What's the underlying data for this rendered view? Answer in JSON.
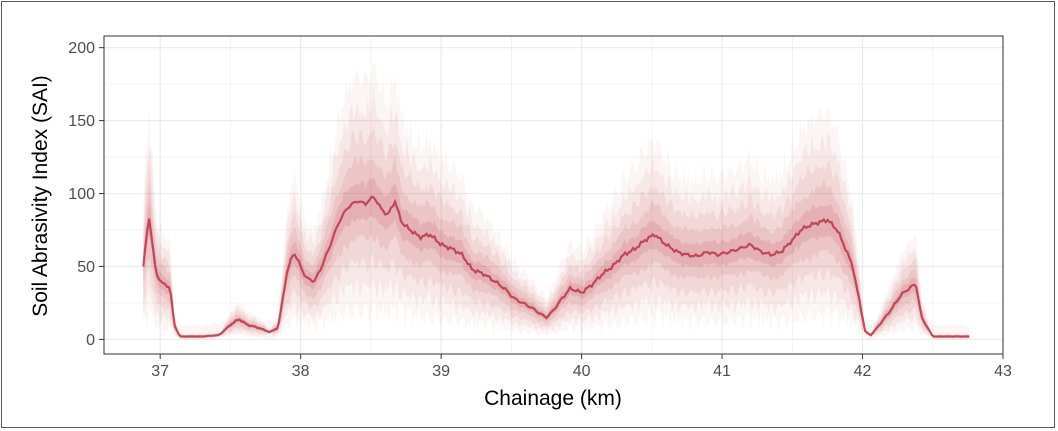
{
  "chart_data": {
    "type": "area",
    "chart_kind": "fan chart (percentile bands)",
    "title": "",
    "xlabel": "Chainage (km)",
    "ylabel": "Soil Abrasivity Index (SAI)",
    "xlim": [
      36.6,
      43.0
    ],
    "ylim": [
      -10,
      208
    ],
    "x_ticks": [
      37,
      38,
      39,
      40,
      41,
      42,
      43
    ],
    "y_ticks": [
      0,
      50,
      100,
      150,
      200
    ],
    "grid": true,
    "legend": "none",
    "colors": {
      "band": "#c0353f",
      "median": "#b3243a",
      "panel_background": "#ffffff",
      "grid": "#ebebeb",
      "panel_border": "#333333"
    },
    "band_opacities": [
      0.05,
      0.07,
      0.09,
      0.11,
      0.14
    ],
    "median_profile": {
      "x": [
        36.88,
        36.92,
        36.97,
        37.02,
        37.07,
        37.1,
        37.14,
        37.2,
        37.3,
        37.42,
        37.5,
        37.56,
        37.62,
        37.7,
        37.78,
        37.84,
        37.9,
        37.95,
        38.0,
        38.04,
        38.1,
        38.15,
        38.2,
        38.27,
        38.33,
        38.4,
        38.46,
        38.52,
        38.57,
        38.62,
        38.67,
        38.72,
        38.78,
        38.85,
        38.92,
        39.0,
        39.08,
        39.15,
        39.22,
        39.3,
        39.38,
        39.45,
        39.52,
        39.58,
        39.64,
        39.7,
        39.75,
        39.8,
        39.86,
        39.92,
        40.0,
        40.08,
        40.15,
        40.22,
        40.3,
        40.38,
        40.45,
        40.52,
        40.6,
        40.68,
        40.75,
        40.82,
        40.9,
        40.97,
        41.05,
        41.12,
        41.2,
        41.28,
        41.35,
        41.42,
        41.5,
        41.56,
        41.62,
        41.68,
        41.75,
        41.82,
        41.88,
        41.93,
        41.97,
        42.02,
        42.06,
        42.12,
        42.2,
        42.27,
        42.33,
        42.38,
        42.42,
        42.5,
        42.6,
        42.7,
        42.76
      ],
      "sai": [
        50,
        85,
        45,
        38,
        36,
        10,
        2,
        2,
        2,
        3,
        10,
        14,
        10,
        8,
        5,
        8,
        45,
        60,
        50,
        42,
        40,
        50,
        62,
        80,
        90,
        95,
        93,
        98,
        90,
        85,
        95,
        80,
        75,
        70,
        72,
        65,
        62,
        58,
        48,
        45,
        40,
        35,
        28,
        25,
        22,
        18,
        15,
        20,
        28,
        35,
        32,
        38,
        45,
        50,
        58,
        62,
        68,
        72,
        65,
        60,
        58,
        57,
        60,
        58,
        60,
        62,
        65,
        60,
        58,
        60,
        68,
        75,
        78,
        80,
        82,
        75,
        62,
        50,
        30,
        5,
        3,
        10,
        20,
        30,
        35,
        38,
        15,
        2,
        2,
        2,
        2
      ]
    }
  }
}
